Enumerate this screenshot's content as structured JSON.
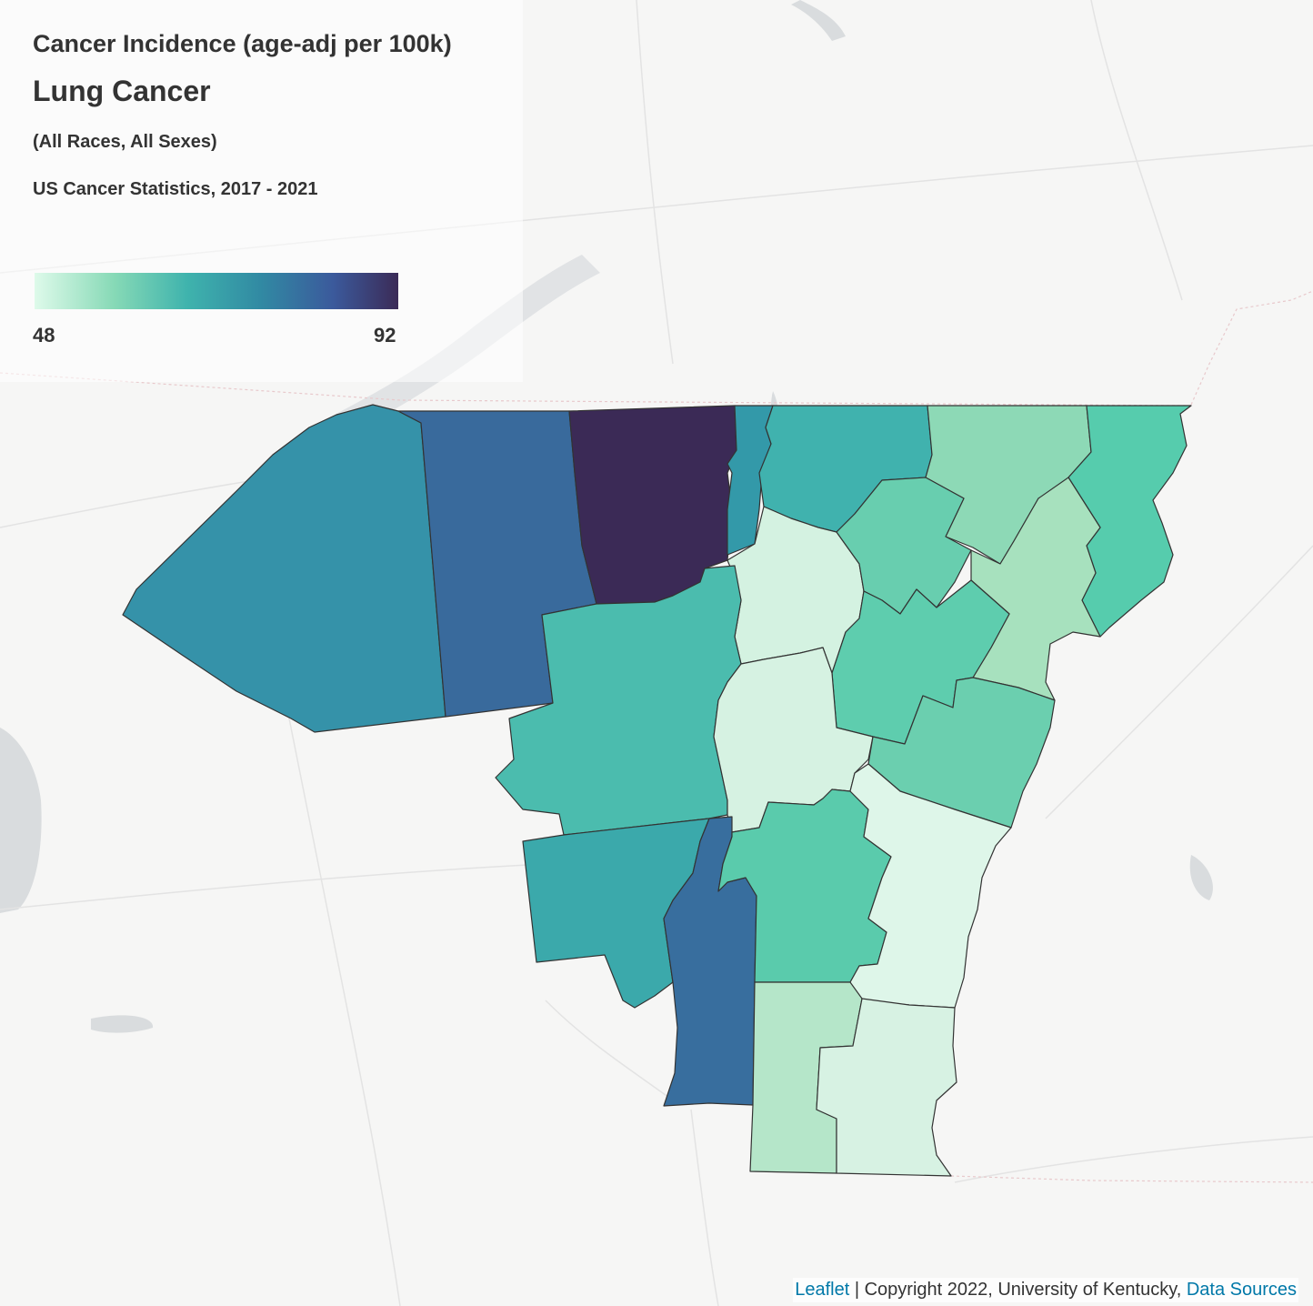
{
  "header": {
    "title": "Cancer Incidence (age-adj per 100k)",
    "subtitle": "Lung Cancer",
    "filter": "(All Races, All Sexes)",
    "source": "US Cancer Statistics, 2017 - 2021"
  },
  "legend": {
    "min": "48",
    "max": "92",
    "colors": [
      "#defaea",
      "#86d9b6",
      "#3fb3ad",
      "#318aa3",
      "#3b5a9c",
      "#3b2b57"
    ]
  },
  "attribution": {
    "leaflet_link": "Leaflet",
    "text": " | Copyright 2022, University of Kentucky, ",
    "sources_link": "Data Sources"
  },
  "map": {
    "basemap_water": "#d9dcde",
    "basemap_roads": "#e3e3e3",
    "county_colors": {
      "c1": "#3592a9",
      "c2": "#396a9c",
      "c3": "#3b2a56",
      "c4": "#3399a9",
      "c5": "#40b2ae",
      "c6": "#8dd9b6",
      "c7": "#56ccad",
      "c8": "#d4f2e1",
      "c9": "#68ceaf",
      "c10": "#a7e1be",
      "c11": "#4bbcae",
      "c12": "#5ecdae",
      "c13": "#d6f2e2",
      "c14": "#6bcfaf",
      "c15": "#3ba9ab",
      "c16": "#386e9e",
      "c17": "#5acbac",
      "c18": "#def6e9",
      "c19": "#b5e6c9",
      "c20": "#d7f2e3"
    }
  }
}
